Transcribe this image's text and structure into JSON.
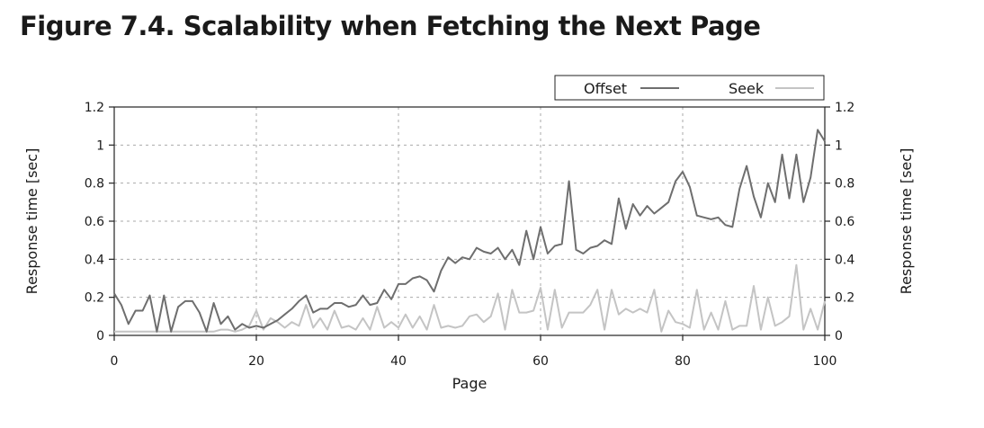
{
  "figure_title": "Figure 7.4. Scalability when Fetching the Next Page",
  "chart_data": {
    "type": "line",
    "xlabel": "Page",
    "ylabel_left": "Response time [sec]",
    "ylabel_right": "Response time [sec]",
    "xlim": [
      0,
      100
    ],
    "ylim": [
      0,
      1.2
    ],
    "x_ticks": [
      0,
      20,
      40,
      60,
      80,
      100
    ],
    "x_tick_labels": [
      "0",
      "20",
      "40",
      "60",
      "80",
      "100"
    ],
    "y_ticks": [
      0,
      0.2,
      0.4,
      0.6,
      0.8,
      1,
      1.2
    ],
    "y_tick_labels": [
      "0",
      "0.2",
      "0.4",
      "0.6",
      "0.8",
      "1",
      "1.2"
    ],
    "grid": true,
    "legend_position": "top-right",
    "series": [
      {
        "name": "Offset",
        "color": "#6e6e6e",
        "x": [
          0,
          1,
          2,
          3,
          4,
          5,
          6,
          7,
          8,
          9,
          10,
          11,
          12,
          13,
          14,
          15,
          16,
          17,
          18,
          19,
          20,
          21,
          22,
          23,
          24,
          25,
          26,
          27,
          28,
          29,
          30,
          31,
          32,
          33,
          34,
          35,
          36,
          37,
          38,
          39,
          40,
          41,
          42,
          43,
          44,
          45,
          46,
          47,
          48,
          49,
          50,
          51,
          52,
          53,
          54,
          55,
          56,
          57,
          58,
          59,
          60,
          61,
          62,
          63,
          64,
          65,
          66,
          67,
          68,
          69,
          70,
          71,
          72,
          73,
          74,
          75,
          76,
          77,
          78,
          79,
          80,
          81,
          82,
          83,
          84,
          85,
          86,
          87,
          88,
          89,
          90,
          91,
          92,
          93,
          94,
          95,
          96,
          97,
          98,
          99,
          100
        ],
        "values": [
          0.22,
          0.16,
          0.06,
          0.13,
          0.13,
          0.21,
          0.02,
          0.21,
          0.02,
          0.15,
          0.18,
          0.18,
          0.12,
          0.02,
          0.17,
          0.06,
          0.1,
          0.03,
          0.06,
          0.04,
          0.05,
          0.04,
          0.06,
          0.08,
          0.11,
          0.14,
          0.18,
          0.21,
          0.12,
          0.14,
          0.14,
          0.17,
          0.17,
          0.15,
          0.16,
          0.21,
          0.16,
          0.17,
          0.24,
          0.19,
          0.27,
          0.27,
          0.3,
          0.31,
          0.29,
          0.23,
          0.34,
          0.41,
          0.38,
          0.41,
          0.4,
          0.46,
          0.44,
          0.43,
          0.46,
          0.4,
          0.45,
          0.37,
          0.55,
          0.4,
          0.57,
          0.43,
          0.47,
          0.48,
          0.81,
          0.45,
          0.43,
          0.46,
          0.47,
          0.5,
          0.48,
          0.72,
          0.56,
          0.69,
          0.63,
          0.68,
          0.64,
          0.67,
          0.7,
          0.81,
          0.86,
          0.78,
          0.63,
          0.62,
          0.61,
          0.62,
          0.58,
          0.57,
          0.77,
          0.89,
          0.73,
          0.62,
          0.8,
          0.7,
          0.95,
          0.72,
          0.95,
          0.7,
          0.83,
          1.08,
          1.02
        ]
      },
      {
        "name": "Seek",
        "color": "#c4c4c4",
        "x": [
          0,
          1,
          2,
          3,
          4,
          5,
          6,
          7,
          8,
          9,
          10,
          11,
          12,
          13,
          14,
          15,
          16,
          17,
          18,
          19,
          20,
          21,
          22,
          23,
          24,
          25,
          26,
          27,
          28,
          29,
          30,
          31,
          32,
          33,
          34,
          35,
          36,
          37,
          38,
          39,
          40,
          41,
          42,
          43,
          44,
          45,
          46,
          47,
          48,
          49,
          50,
          51,
          52,
          53,
          54,
          55,
          56,
          57,
          58,
          59,
          60,
          61,
          62,
          63,
          64,
          65,
          66,
          67,
          68,
          69,
          70,
          71,
          72,
          73,
          74,
          75,
          76,
          77,
          78,
          79,
          80,
          81,
          82,
          83,
          84,
          85,
          86,
          87,
          88,
          89,
          90,
          91,
          92,
          93,
          94,
          95,
          96,
          97,
          98,
          99,
          100
        ],
        "values": [
          0.02,
          0.02,
          0.02,
          0.02,
          0.02,
          0.02,
          0.02,
          0.02,
          0.02,
          0.02,
          0.02,
          0.02,
          0.02,
          0.02,
          0.02,
          0.03,
          0.03,
          0.02,
          0.03,
          0.05,
          0.13,
          0.03,
          0.09,
          0.07,
          0.04,
          0.07,
          0.05,
          0.16,
          0.04,
          0.09,
          0.03,
          0.13,
          0.04,
          0.05,
          0.03,
          0.09,
          0.03,
          0.15,
          0.04,
          0.07,
          0.04,
          0.11,
          0.04,
          0.1,
          0.03,
          0.16,
          0.04,
          0.05,
          0.04,
          0.05,
          0.1,
          0.11,
          0.07,
          0.1,
          0.22,
          0.03,
          0.24,
          0.12,
          0.12,
          0.13,
          0.25,
          0.03,
          0.24,
          0.04,
          0.12,
          0.12,
          0.12,
          0.16,
          0.24,
          0.03,
          0.24,
          0.11,
          0.14,
          0.12,
          0.14,
          0.12,
          0.24,
          0.02,
          0.13,
          0.07,
          0.06,
          0.04,
          0.24,
          0.03,
          0.12,
          0.03,
          0.18,
          0.03,
          0.05,
          0.05,
          0.26,
          0.03,
          0.2,
          0.05,
          0.07,
          0.1,
          0.37,
          0.03,
          0.14,
          0.03,
          0.18
        ]
      }
    ]
  }
}
